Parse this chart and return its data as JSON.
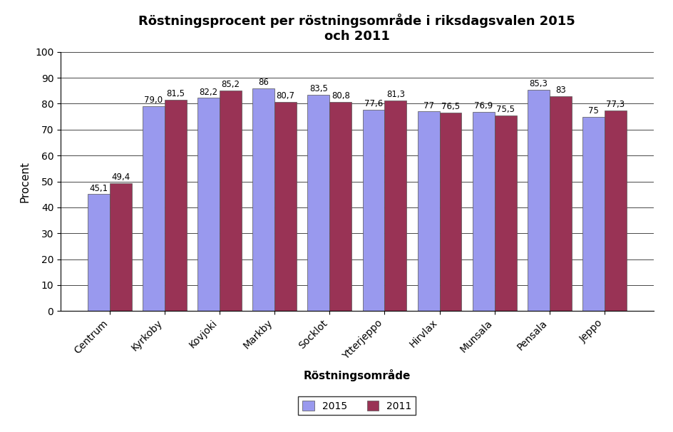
{
  "title": "Röstningsprocent per röstningsområde i riksdagsvalen 2015\noch 2011",
  "xlabel": "Röstningsområde",
  "ylabel": "Procent",
  "categories": [
    "Centrum",
    "Kyrkoby",
    "Kovjoki",
    "Markby",
    "Socklot",
    "Ytterjeppo",
    "Hirvlax",
    "Munsala",
    "Pensala",
    "Jeppo"
  ],
  "values_2015": [
    45.1,
    79.0,
    82.2,
    86.0,
    83.5,
    77.6,
    77.0,
    76.9,
    85.3,
    75.0
  ],
  "values_2011": [
    49.4,
    81.5,
    85.2,
    80.7,
    80.8,
    81.3,
    76.5,
    75.5,
    83.0,
    77.3
  ],
  "labels_2015": [
    "45,1",
    "79,0",
    "82,2",
    "86",
    "83,5",
    "77,6",
    "77",
    "76,9",
    "85,3",
    "75"
  ],
  "labels_2011": [
    "49,4",
    "81,5",
    "85,2",
    "80,7",
    "80,8",
    "81,3",
    "76,5",
    "75,5",
    "83",
    "77,3"
  ],
  "color_2015": "#9999EE",
  "color_2011": "#993355",
  "ylim": [
    0,
    100
  ],
  "yticks": [
    0,
    10,
    20,
    30,
    40,
    50,
    60,
    70,
    80,
    90,
    100
  ],
  "bar_width": 0.4,
  "legend_labels": [
    "2015",
    "2011"
  ],
  "title_fontsize": 13,
  "axis_label_fontsize": 11,
  "tick_fontsize": 10,
  "annotation_fontsize": 8.5
}
